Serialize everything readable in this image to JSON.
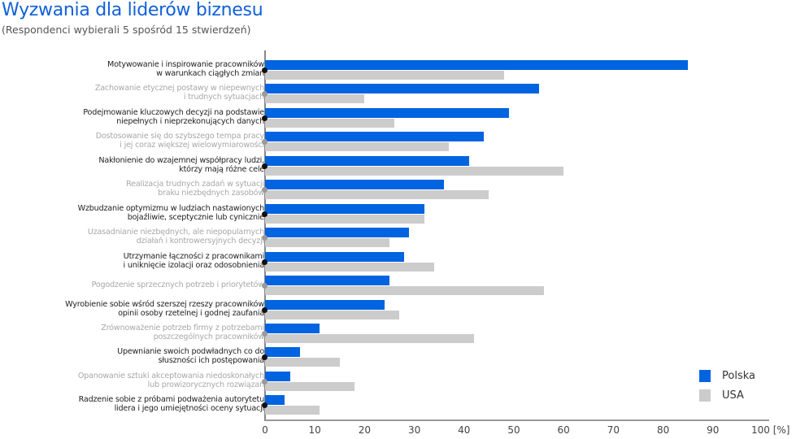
{
  "header": {
    "title": "Wyzwania dla liderów biznesu",
    "subtitle": "(Respondenci wybierali 5 spośród 15 stwierdzeń)"
  },
  "colors": {
    "polska": "#0064e0",
    "usa": "#cccccc",
    "title": "#1060d8"
  },
  "legend": {
    "polska": "Polska",
    "usa": "USA"
  },
  "axis": {
    "ticks": [
      "0",
      "10",
      "20",
      "30",
      "40",
      "50",
      "60",
      "70",
      "80",
      "90",
      "100 [%]"
    ]
  },
  "rows": [
    {
      "l1": "Motywowanie i inspirowanie pracowników",
      "l2": "w warunkach ciągłych zmian",
      "tone": "dark"
    },
    {
      "l1": "Zachowanie etycznej postawy w niepewnych",
      "l2": "i trudnych sytuacjach",
      "tone": "light"
    },
    {
      "l1": "Podejmowanie kluczowych decyzji na podstawie",
      "l2": "niepełnych i nieprzekonujących danych",
      "tone": "dark"
    },
    {
      "l1": "Dostosowanie się do szybszego tempa pracy",
      "l2": "i jej coraz większej wielowymiarowości",
      "tone": "light"
    },
    {
      "l1": "Nakłonienie do wzajemnej współpracy ludzi,",
      "l2": "którzy mają różne cele",
      "tone": "dark"
    },
    {
      "l1": "Realizacja trudnych zadań w sytuacji",
      "l2": "braku niezbędnych zasobów",
      "tone": "light"
    },
    {
      "l1": "Wzbudzanie optymizmu w ludziach nastawionych",
      "l2": "bojaźliwie, sceptycznie lub cynicznie",
      "tone": "dark"
    },
    {
      "l1": "Uzasadnianie niezbędnych, ale niepopularnych",
      "l2": "działań i kontrowersyjnych decyzji",
      "tone": "light"
    },
    {
      "l1": "Utrzymanie łączności z pracownikami",
      "l2": "i uniknięcie izolacji oraz odosobnienia",
      "tone": "dark"
    },
    {
      "l1": "Pogodzenie sprzecznych potrzeb i priorytetów",
      "l2": "",
      "tone": "light"
    },
    {
      "l1": "Wyrobienie sobie wśród szerszej rzeszy pracowników",
      "l2": "opinii osoby rzetelnej i godnej zaufania",
      "tone": "dark"
    },
    {
      "l1": "Zrównoważenie potrzeb firmy z potrzebami",
      "l2": "poszczególnych pracowników",
      "tone": "light"
    },
    {
      "l1": "Upewnianie swoich podwładnych co do",
      "l2": "słuszności ich postępowania",
      "tone": "dark"
    },
    {
      "l1": "Opanowanie sztuki akceptowania niedoskonałych",
      "l2": "lub prowizorycznych rozwiązań",
      "tone": "light"
    },
    {
      "l1": "Radzenie sobie z próbami podważenia autorytetu",
      "l2": "lidera i jego umiejętności oceny sytuacji",
      "tone": "dark"
    }
  ],
  "chart_data": {
    "type": "bar",
    "orientation": "horizontal",
    "title": "Wyzwania dla liderów biznesu",
    "subtitle": "(Respondenci wybierali 5 spośród 15 stwierdzeń)",
    "xlabel": "[%]",
    "ylabel": "",
    "xlim": [
      0,
      100
    ],
    "xticks": [
      0,
      10,
      20,
      30,
      40,
      50,
      60,
      70,
      80,
      90,
      100
    ],
    "grid": false,
    "legend_position": "bottom-right",
    "categories": [
      "Motywowanie i inspirowanie pracowników w warunkach ciągłych zmian",
      "Zachowanie etycznej postawy w niepewnych i trudnych sytuacjach",
      "Podejmowanie kluczowych decyzji na podstawie niepełnych i nieprzekonujących danych",
      "Dostosowanie się do szybszego tempa pracy i jej coraz większej wielowymiarowości",
      "Nakłonienie do wzajemnej współpracy ludzi, którzy mają różne cele",
      "Realizacja trudnych zadań w sytuacji braku niezbędnych zasobów",
      "Wzbudzanie optymizmu w ludziach nastawionych bojaźliwie, sceptycznie lub cynicznie",
      "Uzasadnianie niezbędnych, ale niepopularnych działań i kontrowersyjnych decyzji",
      "Utrzymanie łączności z pracownikami i uniknięcie izolacji oraz odosobnienia",
      "Pogodzenie sprzecznych potrzeb i priorytetów",
      "Wyrobienie sobie wśród szerszej rzeszy pracowników opinii osoby rzetelnej i godnej zaufania",
      "Zrównoważenie potrzeb firmy z potrzebami poszczególnych pracowników",
      "Upewnianie swoich podwładnych co do słuszności ich postępowania",
      "Opanowanie sztuki akceptowania niedoskonałych lub prowizorycznych rozwiązań",
      "Radzenie sobie z próbami podważenia autorytetu lidera i jego umiejętności oceny sytuacji"
    ],
    "series": [
      {
        "name": "Polska",
        "color": "#0064e0",
        "values": [
          85,
          55,
          49,
          44,
          41,
          36,
          32,
          29,
          28,
          25,
          24,
          11,
          7,
          5,
          4
        ]
      },
      {
        "name": "USA",
        "color": "#cccccc",
        "values": [
          48,
          20,
          26,
          37,
          60,
          45,
          32,
          25,
          34,
          56,
          27,
          42,
          15,
          18,
          11
        ]
      }
    ]
  }
}
